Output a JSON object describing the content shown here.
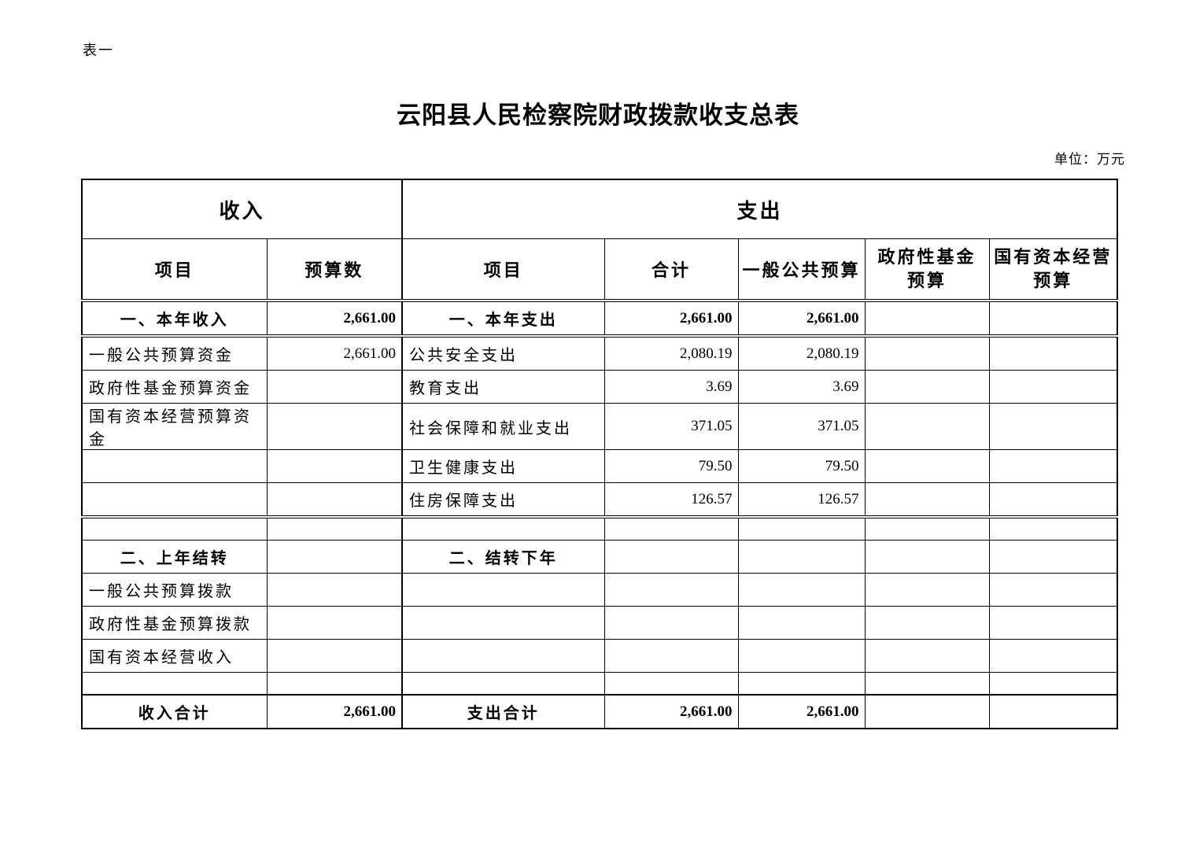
{
  "colors": {
    "ink": "#000000",
    "paper": "#ffffff"
  },
  "page": {
    "sheet_label": "表一",
    "title": "云阳县人民检察院财政拨款收支总表",
    "unit_note": "单位：万元"
  },
  "table": {
    "header": {
      "income_group": "收入",
      "expense_group": "支出",
      "income_item": "项目",
      "income_budget": "预算数",
      "expense_item": "项目",
      "expense_total": "合计",
      "expense_general": "一般公共预算",
      "expense_govfund": "政府性基金\n预算",
      "expense_statecap": "国有资本经营\n预算"
    },
    "rows": [
      {
        "kind": "section",
        "income_item": "一、本年收入",
        "income_budget": "2,661.00",
        "expense_item": "一、本年支出",
        "expense_total": "2,661.00",
        "expense_general": "2,661.00",
        "expense_govfund": "",
        "expense_statecap": ""
      },
      {
        "kind": "item",
        "income_item": "一般公共预算资金",
        "income_budget": "2,661.00",
        "expense_item": "公共安全支出",
        "expense_total": "2,080.19",
        "expense_general": "2,080.19",
        "expense_govfund": "",
        "expense_statecap": ""
      },
      {
        "kind": "item",
        "income_item": "政府性基金预算资金",
        "income_budget": "",
        "expense_item": "教育支出",
        "expense_total": "3.69",
        "expense_general": "3.69",
        "expense_govfund": "",
        "expense_statecap": ""
      },
      {
        "kind": "item",
        "income_item": "国有资本经营预算资金",
        "income_budget": "",
        "expense_item": "社会保障和就业支出",
        "expense_total": "371.05",
        "expense_general": "371.05",
        "expense_govfund": "",
        "expense_statecap": ""
      },
      {
        "kind": "item",
        "income_item": "",
        "income_budget": "",
        "expense_item": "卫生健康支出",
        "expense_total": "79.50",
        "expense_general": "79.50",
        "expense_govfund": "",
        "expense_statecap": ""
      },
      {
        "kind": "item",
        "income_item": "",
        "income_budget": "",
        "expense_item": "住房保障支出",
        "expense_total": "126.57",
        "expense_general": "126.57",
        "expense_govfund": "",
        "expense_statecap": ""
      },
      {
        "kind": "spacer",
        "income_item": "",
        "income_budget": "",
        "expense_item": "",
        "expense_total": "",
        "expense_general": "",
        "expense_govfund": "",
        "expense_statecap": ""
      },
      {
        "kind": "section",
        "income_item": "二、上年结转",
        "income_budget": "",
        "expense_item": "二、结转下年",
        "expense_total": "",
        "expense_general": "",
        "expense_govfund": "",
        "expense_statecap": ""
      },
      {
        "kind": "item",
        "income_item": "一般公共预算拨款",
        "income_budget": "",
        "expense_item": "",
        "expense_total": "",
        "expense_general": "",
        "expense_govfund": "",
        "expense_statecap": ""
      },
      {
        "kind": "item",
        "income_item": "政府性基金预算拨款",
        "income_budget": "",
        "expense_item": "",
        "expense_total": "",
        "expense_general": "",
        "expense_govfund": "",
        "expense_statecap": ""
      },
      {
        "kind": "item",
        "income_item": "国有资本经营收入",
        "income_budget": "",
        "expense_item": "",
        "expense_total": "",
        "expense_general": "",
        "expense_govfund": "",
        "expense_statecap": ""
      },
      {
        "kind": "spacer",
        "income_item": "",
        "income_budget": "",
        "expense_item": "",
        "expense_total": "",
        "expense_general": "",
        "expense_govfund": "",
        "expense_statecap": ""
      },
      {
        "kind": "total",
        "income_item": "收入合计",
        "income_budget": "2,661.00",
        "expense_item": "支出合计",
        "expense_total": "2,661.00",
        "expense_general": "2,661.00",
        "expense_govfund": "",
        "expense_statecap": ""
      }
    ]
  }
}
